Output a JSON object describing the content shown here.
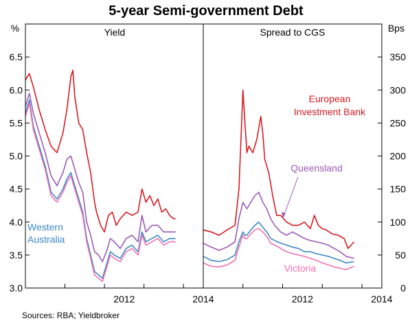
{
  "chart_data": {
    "type": "line",
    "title": "5-year Semi-government Debt",
    "source": "Sources: RBA; Yieldbroker",
    "colors": {
      "european_investment_bank": "#d71920",
      "queensland": "#9b59b6",
      "western_australia": "#3a86c8",
      "victoria": "#f06fb0",
      "axis": "#000000"
    },
    "panels": [
      {
        "title": "Yield",
        "unit": "%",
        "x_ticks": [
          2012,
          2014
        ],
        "xlim": [
          2010.0,
          2014.5
        ],
        "ylim": [
          3.0,
          7.0
        ],
        "y_ticks": [
          "3.0",
          "3.5",
          "4.0",
          "4.5",
          "5.0",
          "5.5",
          "6.0",
          "6.5"
        ],
        "annotations": [
          {
            "text": "Western",
            "series": "Western Australia"
          },
          {
            "text": "Australia",
            "series": "Western Australia"
          }
        ],
        "series": [
          {
            "name": "European Investment Bank",
            "color_key": "european_investment_bank",
            "x": [
              2010.0,
              2010.1,
              2010.2,
              2010.35,
              2010.5,
              2010.65,
              2010.8,
              2010.95,
              2011.05,
              2011.15,
              2011.2,
              2011.25,
              2011.35,
              2011.45,
              2011.55,
              2011.65,
              2011.75,
              2011.8,
              2011.9,
              2012.0,
              2012.1,
              2012.2,
              2012.3,
              2012.4,
              2012.55,
              2012.7,
              2012.85,
              2012.95,
              2013.05,
              2013.15,
              2013.25,
              2013.35,
              2013.45,
              2013.55,
              2013.65,
              2013.75,
              2013.8
            ],
            "y": [
              6.15,
              6.25,
              6.05,
              5.7,
              5.4,
              5.15,
              5.05,
              5.35,
              5.7,
              6.2,
              6.3,
              5.9,
              5.5,
              5.4,
              5.05,
              4.75,
              4.3,
              4.15,
              3.95,
              3.85,
              4.1,
              4.15,
              3.95,
              4.05,
              4.15,
              4.1,
              4.15,
              4.5,
              4.3,
              4.4,
              4.25,
              4.35,
              4.15,
              4.2,
              4.1,
              4.05,
              4.05
            ]
          },
          {
            "name": "Queensland",
            "color_key": "queensland",
            "x": [
              2010.0,
              2010.1,
              2010.2,
              2010.35,
              2010.5,
              2010.65,
              2010.8,
              2010.95,
              2011.05,
              2011.15,
              2011.25,
              2011.35,
              2011.45,
              2011.55,
              2011.65,
              2011.75,
              2011.85,
              2011.95,
              2012.05,
              2012.15,
              2012.25,
              2012.4,
              2012.55,
              2012.7,
              2012.85,
              2012.95,
              2013.05,
              2013.2,
              2013.35,
              2013.5,
              2013.65,
              2013.8
            ],
            "y": [
              5.75,
              5.95,
              5.65,
              5.35,
              5.05,
              4.7,
              4.55,
              4.75,
              4.95,
              5.0,
              4.8,
              4.6,
              4.45,
              4.0,
              3.8,
              3.55,
              3.5,
              3.4,
              3.55,
              3.75,
              3.7,
              3.6,
              3.75,
              3.8,
              3.7,
              4.1,
              3.85,
              3.95,
              3.95,
              3.85,
              3.85,
              3.85
            ]
          },
          {
            "name": "Western Australia",
            "color_key": "western_australia",
            "x": [
              2010.0,
              2010.1,
              2010.2,
              2010.35,
              2010.5,
              2010.65,
              2010.8,
              2010.95,
              2011.05,
              2011.15,
              2011.25,
              2011.35,
              2011.45,
              2011.55,
              2011.65,
              2011.75,
              2011.85,
              2011.95,
              2012.05,
              2012.15,
              2012.25,
              2012.4,
              2012.55,
              2012.7,
              2012.85,
              2012.95,
              2013.05,
              2013.2,
              2013.35,
              2013.5,
              2013.65,
              2013.8
            ],
            "y": [
              5.65,
              5.85,
              5.45,
              5.15,
              4.85,
              4.45,
              4.35,
              4.5,
              4.65,
              4.75,
              4.55,
              4.35,
              4.15,
              3.75,
              3.5,
              3.25,
              3.2,
              3.15,
              3.35,
              3.55,
              3.5,
              3.45,
              3.6,
              3.65,
              3.55,
              3.85,
              3.7,
              3.75,
              3.8,
              3.7,
              3.75,
              3.75
            ]
          },
          {
            "name": "Victoria",
            "color_key": "victoria",
            "x": [
              2010.0,
              2010.1,
              2010.2,
              2010.35,
              2010.5,
              2010.65,
              2010.8,
              2010.95,
              2011.05,
              2011.15,
              2011.25,
              2011.35,
              2011.45,
              2011.55,
              2011.65,
              2011.75,
              2011.85,
              2011.95,
              2012.05,
              2012.15,
              2012.25,
              2012.4,
              2012.55,
              2012.7,
              2012.85,
              2012.95,
              2013.05,
              2013.2,
              2013.35,
              2013.5,
              2013.65,
              2013.8
            ],
            "y": [
              5.6,
              5.8,
              5.4,
              5.1,
              4.8,
              4.4,
              4.3,
              4.45,
              4.6,
              4.7,
              4.5,
              4.3,
              4.1,
              3.7,
              3.45,
              3.2,
              3.15,
              3.1,
              3.3,
              3.5,
              3.45,
              3.4,
              3.55,
              3.6,
              3.5,
              3.8,
              3.65,
              3.7,
              3.75,
              3.65,
              3.7,
              3.7
            ]
          }
        ]
      },
      {
        "title": "Spread to CGS",
        "unit": "Bps",
        "x_ticks": [
          2012,
          2014
        ],
        "xlim": [
          2010.0,
          2014.5
        ],
        "ylim": [
          0,
          400
        ],
        "y_ticks": [
          "0",
          "50",
          "100",
          "150",
          "200",
          "250",
          "300",
          "350"
        ],
        "annotations": [
          {
            "text": "European",
            "series": "European Investment Bank"
          },
          {
            "text": "Investment Bank",
            "series": "European Investment Bank"
          },
          {
            "text": "Queensland",
            "series": "Queensland"
          },
          {
            "text": "Victoria",
            "series": "Victoria"
          }
        ],
        "series": [
          {
            "name": "European Investment Bank",
            "color_key": "european_investment_bank",
            "x": [
              2010.0,
              2010.2,
              2010.4,
              2010.6,
              2010.8,
              2010.9,
              2011.0,
              2011.05,
              2011.1,
              2011.15,
              2011.25,
              2011.35,
              2011.45,
              2011.5,
              2011.55,
              2011.65,
              2011.75,
              2011.85,
              2011.95,
              2012.1,
              2012.25,
              2012.4,
              2012.55,
              2012.7,
              2012.8,
              2012.9,
              2013.0,
              2013.1,
              2013.25,
              2013.4,
              2013.55,
              2013.65,
              2013.8
            ],
            "y": [
              88,
              85,
              80,
              88,
              95,
              150,
              300,
              250,
              205,
              215,
              205,
              225,
              260,
              235,
              195,
              175,
              140,
              110,
              110,
              100,
              95,
              95,
              100,
              90,
              110,
              95,
              90,
              88,
              82,
              80,
              75,
              60,
              70
            ]
          },
          {
            "name": "Queensland",
            "color_key": "queensland",
            "x": [
              2010.0,
              2010.2,
              2010.4,
              2010.6,
              2010.8,
              2010.9,
              2011.0,
              2011.05,
              2011.1,
              2011.2,
              2011.3,
              2011.4,
              2011.5,
              2011.6,
              2011.7,
              2011.8,
              2011.95,
              2012.1,
              2012.25,
              2012.4,
              2012.55,
              2012.7,
              2012.85,
              2013.0,
              2013.15,
              2013.3,
              2013.45,
              2013.6,
              2013.8
            ],
            "y": [
              68,
              62,
              57,
              62,
              70,
              105,
              130,
              125,
              120,
              130,
              140,
              145,
              130,
              120,
              105,
              95,
              85,
              80,
              85,
              80,
              75,
              72,
              70,
              68,
              65,
              60,
              55,
              48,
              45
            ]
          },
          {
            "name": "Western Australia",
            "color_key": "western_australia",
            "x": [
              2010.0,
              2010.2,
              2010.4,
              2010.6,
              2010.8,
              2010.9,
              2011.0,
              2011.05,
              2011.1,
              2011.2,
              2011.3,
              2011.4,
              2011.5,
              2011.6,
              2011.7,
              2011.8,
              2011.95,
              2012.1,
              2012.25,
              2012.4,
              2012.55,
              2012.7,
              2012.85,
              2013.0,
              2013.15,
              2013.3,
              2013.45,
              2013.6,
              2013.8
            ],
            "y": [
              48,
              42,
              40,
              43,
              50,
              70,
              85,
              80,
              80,
              88,
              95,
              100,
              92,
              85,
              75,
              72,
              68,
              65,
              62,
              60,
              55,
              55,
              52,
              50,
              48,
              45,
              42,
              38,
              40
            ]
          },
          {
            "name": "Victoria",
            "color_key": "victoria",
            "x": [
              2010.0,
              2010.2,
              2010.4,
              2010.6,
              2010.8,
              2010.9,
              2011.0,
              2011.05,
              2011.1,
              2011.2,
              2011.3,
              2011.4,
              2011.5,
              2011.6,
              2011.7,
              2011.8,
              2011.95,
              2012.1,
              2012.25,
              2012.4,
              2012.55,
              2012.7,
              2012.85,
              2013.0,
              2013.15,
              2013.3,
              2013.45,
              2013.6,
              2013.8
            ],
            "y": [
              38,
              33,
              32,
              35,
              42,
              62,
              80,
              75,
              75,
              82,
              88,
              90,
              85,
              78,
              68,
              65,
              60,
              55,
              52,
              50,
              48,
              45,
              42,
              38,
              35,
              32,
              30,
              28,
              33
            ]
          }
        ]
      }
    ]
  }
}
